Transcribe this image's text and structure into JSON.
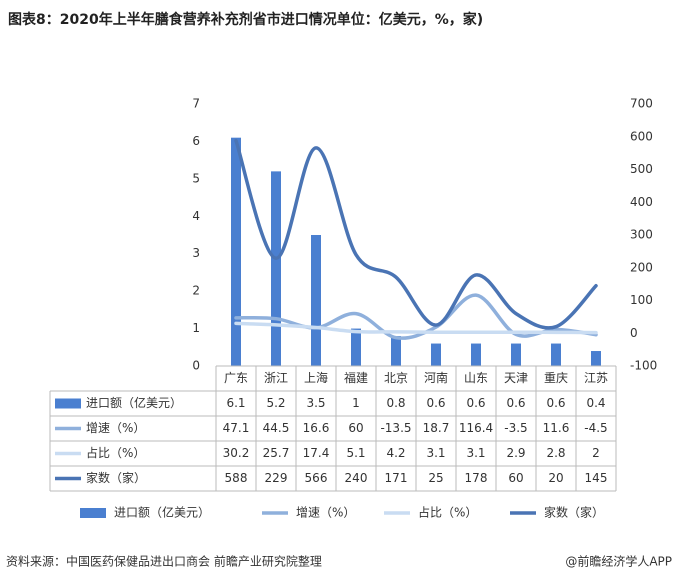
{
  "chart_data": {
    "type": "combo",
    "title": "图表8：2020年上半年膳食营养补充剂省市进口情况单位：亿美元，%，家)",
    "categories": [
      "广东",
      "浙江",
      "上海",
      "福建",
      "北京",
      "河南",
      "山东",
      "天津",
      "重庆",
      "江苏"
    ],
    "series": [
      {
        "name": "进口额（亿美元）",
        "type": "bar",
        "axis": "y",
        "color": "#4a7fd0",
        "values": [
          6.1,
          5.2,
          3.5,
          1,
          0.8,
          0.6,
          0.6,
          0.6,
          0.6,
          0.4
        ]
      },
      {
        "name": "增速（%）",
        "type": "line",
        "axis": "y2",
        "color": "#8fb0dc",
        "values": [
          47.1,
          44.5,
          16.6,
          60,
          -13.5,
          18.7,
          116.4,
          -3.5,
          11.6,
          -4.5
        ]
      },
      {
        "name": "占比（%）",
        "type": "line",
        "axis": "y2",
        "color": "#c9dcf2",
        "values": [
          30.2,
          25.7,
          17.4,
          5.1,
          4.2,
          3.1,
          3.1,
          2.9,
          2.8,
          2
        ]
      },
      {
        "name": "家数（家）",
        "type": "line",
        "axis": "y2",
        "color": "#4a74b4",
        "values": [
          588,
          229,
          566,
          240,
          171,
          25,
          178,
          60,
          20,
          145
        ]
      }
    ],
    "ylim": [
      0,
      7
    ],
    "yticks": [
      0,
      1,
      2,
      3,
      4,
      5,
      6,
      7
    ],
    "y2lim": [
      -100,
      700
    ],
    "y2ticks": [
      -100,
      0,
      100,
      200,
      300,
      400,
      500,
      600,
      700
    ],
    "source": "资料来源：中国医药保健品进出口商会 前瞻产业研究院整理",
    "brand": "@前瞻经济学人APP"
  }
}
